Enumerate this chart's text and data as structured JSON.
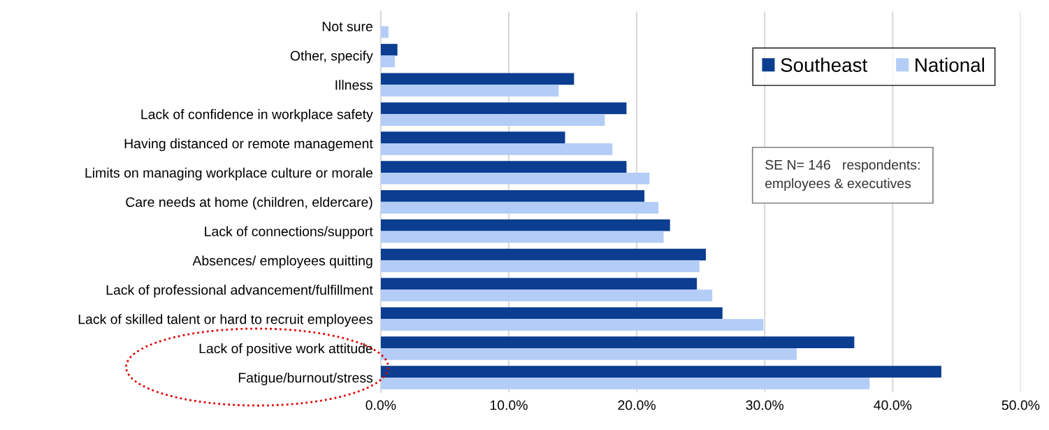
{
  "chart_data": {
    "type": "bar",
    "orientation": "horizontal",
    "categories": [
      "Not sure",
      "Other, specify",
      "Illness",
      "Lack of confidence in workplace safety",
      "Having distanced or remote management",
      "Limits on managing workplace culture or morale",
      "Care needs at home (children, eldercare)",
      "Lack of connections/support",
      "Absences/ employees quitting",
      "Lack of professional advancement/fulfillment",
      "Lack of skilled talent or hard to recruit employees",
      "Lack of positive work attitude",
      "Fatigue/burnout/stress"
    ],
    "series": [
      {
        "name": "Southeast",
        "color": "#0b3d91",
        "values": [
          null,
          1.3,
          15.1,
          19.2,
          14.4,
          19.2,
          20.6,
          22.6,
          25.4,
          24.7,
          26.7,
          37.0,
          43.8
        ]
      },
      {
        "name": "National",
        "color": "#b3cdf7",
        "values": [
          0.6,
          1.1,
          13.9,
          17.5,
          18.1,
          21.0,
          21.7,
          22.1,
          24.9,
          25.9,
          29.9,
          32.5,
          38.2
        ]
      }
    ],
    "xlim": [
      0,
      50
    ],
    "xticks": [
      {
        "value": 0,
        "label": "0.0%"
      },
      {
        "value": 10,
        "label": "10.0%"
      },
      {
        "value": 20,
        "label": "20.0%"
      },
      {
        "value": 30,
        "label": "30.0%"
      },
      {
        "value": 40,
        "label": "40.0%"
      },
      {
        "value": 50,
        "label": "50.0%"
      }
    ],
    "grid": "x",
    "legend": "top right",
    "annotations": [
      "SE N= 146   respondents:\nemployees & executives"
    ]
  }
}
